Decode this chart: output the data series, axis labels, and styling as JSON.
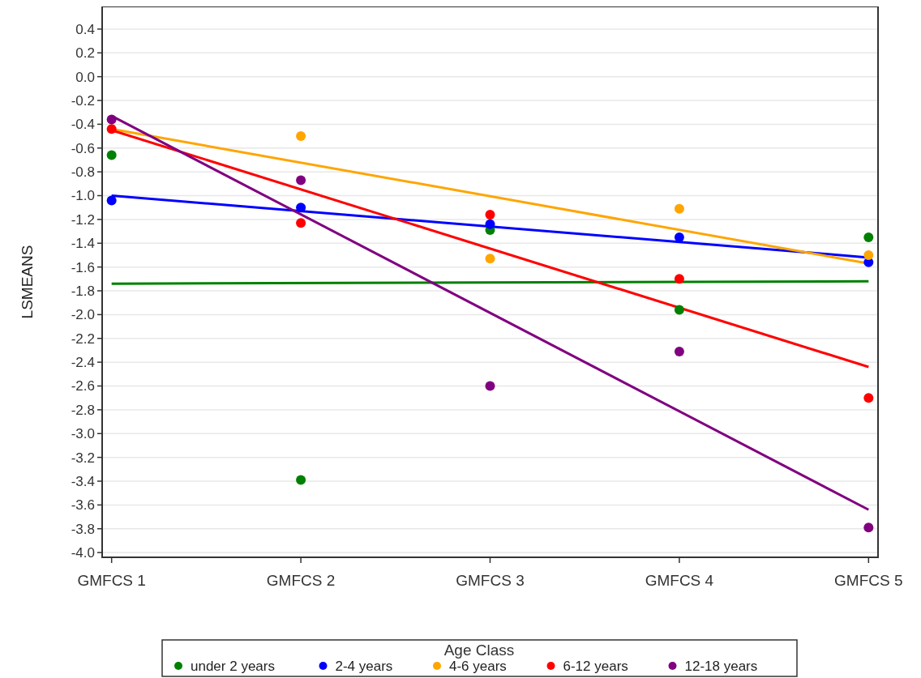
{
  "chart_data": {
    "type": "scatter",
    "ylabel": "LSMEANS",
    "legend_title": "Age Class",
    "legend": "bottom",
    "grid": "y",
    "marker": "circle",
    "categories": [
      "GMFCS 1",
      "GMFCS 2",
      "GMFCS 3",
      "GMFCS 4",
      "GMFCS 5"
    ],
    "ylim": [
      -4.04,
      0.59
    ],
    "yticks": [
      {
        "value": -4,
        "label": "-4.0"
      },
      {
        "value": -3.8,
        "label": "-3.8"
      },
      {
        "value": -3.6,
        "label": "-3.6"
      },
      {
        "value": -3.4,
        "label": "-3.4"
      },
      {
        "value": -3.2,
        "label": "-3.2"
      },
      {
        "value": -3,
        "label": "-3.0"
      },
      {
        "value": -2.8,
        "label": "-2.8"
      },
      {
        "value": -2.6,
        "label": "-2.6"
      },
      {
        "value": -2.4,
        "label": "-2.4"
      },
      {
        "value": -2.2,
        "label": "-2.2"
      },
      {
        "value": -2,
        "label": "-2.0"
      },
      {
        "value": -1.8,
        "label": "-1.8"
      },
      {
        "value": -1.6,
        "label": "-1.6"
      },
      {
        "value": -1.4,
        "label": "-1.4"
      },
      {
        "value": -1.2,
        "label": "-1.2"
      },
      {
        "value": -1,
        "label": "-1.0"
      },
      {
        "value": -0.8,
        "label": "-0.8"
      },
      {
        "value": -0.6,
        "label": "-0.6"
      },
      {
        "value": -0.4,
        "label": "-0.4"
      },
      {
        "value": -0.2,
        "label": "-0.2"
      },
      {
        "value": 0,
        "label": "0.0"
      },
      {
        "value": 0.2,
        "label": "0.2"
      },
      {
        "value": 0.4,
        "label": "0.4"
      }
    ],
    "series": [
      {
        "type": "line",
        "marker": "none",
        "color": "#008000",
        "x": [
          "GMFCS 1",
          "GMFCS 5"
        ],
        "values": [
          -1.74,
          -1.72
        ]
      },
      {
        "type": "line",
        "marker": "none",
        "color": "#0000ff",
        "x": [
          "GMFCS 1",
          "GMFCS 5"
        ],
        "values": [
          -1.0,
          -1.52
        ]
      },
      {
        "type": "line",
        "marker": "none",
        "color": "#ffa500",
        "x": [
          "GMFCS 1",
          "GMFCS 5"
        ],
        "values": [
          -0.44,
          -1.57
        ]
      },
      {
        "type": "line",
        "marker": "none",
        "color": "#ff0000",
        "x": [
          "GMFCS 1",
          "GMFCS 5"
        ],
        "values": [
          -0.45,
          -2.44
        ]
      },
      {
        "type": "line",
        "marker": "none",
        "color": "#800080",
        "x": [
          "GMFCS 1",
          "GMFCS 5"
        ],
        "values": [
          -0.33,
          -3.64
        ]
      },
      {
        "name": "under 2 years",
        "color": "#008000",
        "values": [
          -0.66,
          -3.39,
          -1.29,
          -1.96,
          -1.35
        ]
      },
      {
        "name": "2-4 years",
        "color": "#0000ff",
        "values": [
          -1.04,
          -1.1,
          -1.24,
          -1.35,
          -1.56
        ]
      },
      {
        "name": "4-6 years",
        "color": "#ffa500",
        "values": [
          null,
          -0.5,
          -1.53,
          -1.11,
          -1.5
        ]
      },
      {
        "name": "6-12 years",
        "color": "#ff0000",
        "values": [
          -0.44,
          -1.23,
          -1.16,
          -1.7,
          -2.7
        ]
      },
      {
        "name": "12-18 years",
        "color": "#800080",
        "values": [
          -0.36,
          -0.87,
          -2.6,
          -2.31,
          -3.79
        ]
      }
    ]
  }
}
